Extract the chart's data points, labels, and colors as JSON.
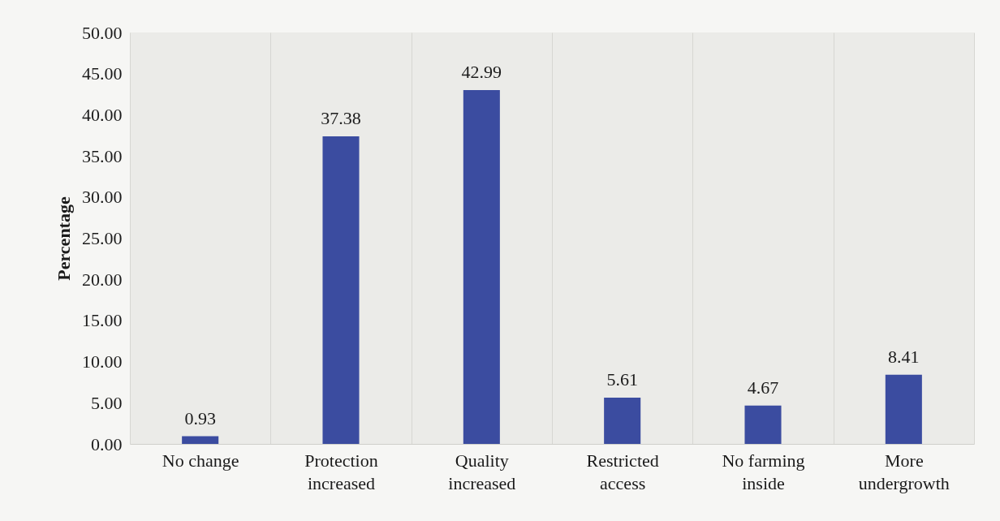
{
  "chart_data": {
    "type": "bar",
    "ylabel": "Percentage",
    "categories": [
      "No change",
      "Protection increased",
      "Quality increased",
      "Restricted access",
      "No farming inside",
      "More undergrowth"
    ],
    "values": [
      0.93,
      37.38,
      42.99,
      5.61,
      4.67,
      8.41
    ],
    "color": "#3b4ca0",
    "ylim": [
      0,
      50
    ],
    "yticks": [
      {
        "value": 0,
        "label": "0.00"
      },
      {
        "value": 5,
        "label": "5.00"
      },
      {
        "value": 10,
        "label": "10.00"
      },
      {
        "value": 15,
        "label": "15.00"
      },
      {
        "value": 20,
        "label": "20.00"
      },
      {
        "value": 25,
        "label": "25.00"
      },
      {
        "value": 30,
        "label": "30.00"
      },
      {
        "value": 35,
        "label": "35.00"
      },
      {
        "value": 40,
        "label": "40.00"
      },
      {
        "value": 45,
        "label": "45.00"
      },
      {
        "value": 50,
        "label": "50.00"
      }
    ],
    "grid": "x",
    "data_labels": true
  }
}
